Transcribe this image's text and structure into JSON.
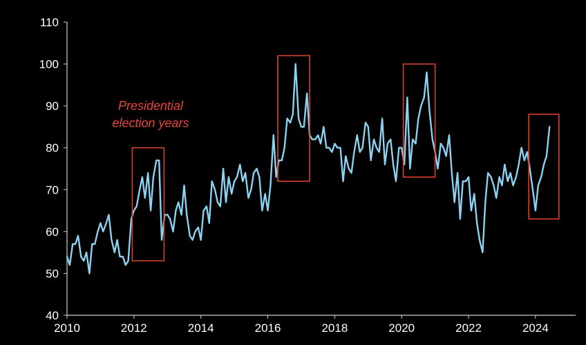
{
  "chart_data": {
    "type": "line",
    "title": "",
    "xlabel": "",
    "ylabel": "",
    "xlim": [
      2010,
      2025.2
    ],
    "ylim": [
      40,
      110
    ],
    "x_ticks": [
      "2010",
      "2012",
      "2014",
      "2016",
      "2018",
      "2020",
      "2022",
      "2024"
    ],
    "y_ticks": [
      "40",
      "50",
      "60",
      "70",
      "80",
      "90",
      "100",
      "110"
    ],
    "grid": false,
    "legend": "none",
    "series": [
      {
        "color": "#8ed2f2",
        "points": [
          [
            2010.0,
            54
          ],
          [
            2010.08,
            52
          ],
          [
            2010.17,
            57
          ],
          [
            2010.25,
            57
          ],
          [
            2010.33,
            59
          ],
          [
            2010.42,
            54
          ],
          [
            2010.5,
            53
          ],
          [
            2010.58,
            55
          ],
          [
            2010.67,
            50
          ],
          [
            2010.75,
            57
          ],
          [
            2010.83,
            57
          ],
          [
            2010.92,
            60
          ],
          [
            2011.0,
            62
          ],
          [
            2011.08,
            60
          ],
          [
            2011.17,
            62
          ],
          [
            2011.25,
            64
          ],
          [
            2011.33,
            58
          ],
          [
            2011.42,
            55
          ],
          [
            2011.5,
            58
          ],
          [
            2011.58,
            54
          ],
          [
            2011.67,
            54
          ],
          [
            2011.75,
            52
          ],
          [
            2011.83,
            53
          ],
          [
            2011.92,
            63
          ],
          [
            2012.0,
            65
          ],
          [
            2012.08,
            66
          ],
          [
            2012.17,
            70
          ],
          [
            2012.25,
            73
          ],
          [
            2012.33,
            68
          ],
          [
            2012.42,
            74
          ],
          [
            2012.5,
            65
          ],
          [
            2012.58,
            73
          ],
          [
            2012.67,
            77
          ],
          [
            2012.75,
            77
          ],
          [
            2012.83,
            58
          ],
          [
            2012.92,
            64
          ],
          [
            2013.0,
            64
          ],
          [
            2013.08,
            63
          ],
          [
            2013.17,
            60
          ],
          [
            2013.25,
            65
          ],
          [
            2013.33,
            67
          ],
          [
            2013.42,
            64
          ],
          [
            2013.5,
            71
          ],
          [
            2013.58,
            64
          ],
          [
            2013.67,
            59
          ],
          [
            2013.75,
            58
          ],
          [
            2013.83,
            60
          ],
          [
            2013.92,
            61
          ],
          [
            2014.0,
            58
          ],
          [
            2014.08,
            65
          ],
          [
            2014.17,
            66
          ],
          [
            2014.25,
            62
          ],
          [
            2014.33,
            72
          ],
          [
            2014.42,
            70
          ],
          [
            2014.5,
            67
          ],
          [
            2014.58,
            66
          ],
          [
            2014.67,
            75
          ],
          [
            2014.75,
            67
          ],
          [
            2014.83,
            73
          ],
          [
            2014.92,
            69
          ],
          [
            2015.0,
            72
          ],
          [
            2015.08,
            73
          ],
          [
            2015.17,
            76
          ],
          [
            2015.25,
            72
          ],
          [
            2015.33,
            74
          ],
          [
            2015.42,
            68
          ],
          [
            2015.5,
            70
          ],
          [
            2015.58,
            74
          ],
          [
            2015.67,
            75
          ],
          [
            2015.75,
            73
          ],
          [
            2015.83,
            65
          ],
          [
            2015.92,
            69
          ],
          [
            2016.0,
            65
          ],
          [
            2016.08,
            71
          ],
          [
            2016.17,
            83
          ],
          [
            2016.25,
            73
          ],
          [
            2016.33,
            77
          ],
          [
            2016.42,
            77
          ],
          [
            2016.5,
            80
          ],
          [
            2016.58,
            87
          ],
          [
            2016.67,
            86
          ],
          [
            2016.75,
            88
          ],
          [
            2016.83,
            100
          ],
          [
            2016.92,
            87
          ],
          [
            2017.0,
            85
          ],
          [
            2017.08,
            85
          ],
          [
            2017.17,
            93
          ],
          [
            2017.25,
            83
          ],
          [
            2017.33,
            82
          ],
          [
            2017.42,
            82
          ],
          [
            2017.5,
            83
          ],
          [
            2017.58,
            81
          ],
          [
            2017.67,
            85
          ],
          [
            2017.75,
            80
          ],
          [
            2017.83,
            80
          ],
          [
            2017.92,
            79
          ],
          [
            2018.0,
            81
          ],
          [
            2018.08,
            80
          ],
          [
            2018.17,
            80
          ],
          [
            2018.25,
            72
          ],
          [
            2018.33,
            78
          ],
          [
            2018.42,
            75
          ],
          [
            2018.5,
            74
          ],
          [
            2018.58,
            79
          ],
          [
            2018.67,
            83
          ],
          [
            2018.75,
            79
          ],
          [
            2018.83,
            80
          ],
          [
            2018.92,
            86
          ],
          [
            2019.0,
            85
          ],
          [
            2019.08,
            77
          ],
          [
            2019.17,
            82
          ],
          [
            2019.25,
            80
          ],
          [
            2019.33,
            79
          ],
          [
            2019.42,
            87
          ],
          [
            2019.5,
            76
          ],
          [
            2019.58,
            81
          ],
          [
            2019.67,
            82
          ],
          [
            2019.75,
            76
          ],
          [
            2019.83,
            72
          ],
          [
            2019.92,
            80
          ],
          [
            2020.0,
            80
          ],
          [
            2020.08,
            76
          ],
          [
            2020.17,
            92
          ],
          [
            2020.25,
            75
          ],
          [
            2020.33,
            82
          ],
          [
            2020.42,
            81
          ],
          [
            2020.5,
            87
          ],
          [
            2020.58,
            90
          ],
          [
            2020.67,
            92
          ],
          [
            2020.75,
            98
          ],
          [
            2020.83,
            89
          ],
          [
            2020.92,
            82
          ],
          [
            2021.0,
            79
          ],
          [
            2021.08,
            75
          ],
          [
            2021.17,
            81
          ],
          [
            2021.25,
            80
          ],
          [
            2021.33,
            78
          ],
          [
            2021.42,
            83
          ],
          [
            2021.5,
            74
          ],
          [
            2021.58,
            67
          ],
          [
            2021.67,
            74
          ],
          [
            2021.75,
            63
          ],
          [
            2021.83,
            72
          ],
          [
            2021.92,
            72
          ],
          [
            2022.0,
            73
          ],
          [
            2022.08,
            65
          ],
          [
            2022.17,
            69
          ],
          [
            2022.25,
            62
          ],
          [
            2022.33,
            58
          ],
          [
            2022.42,
            55
          ],
          [
            2022.5,
            67
          ],
          [
            2022.58,
            74
          ],
          [
            2022.67,
            73
          ],
          [
            2022.75,
            71
          ],
          [
            2022.83,
            68
          ],
          [
            2022.92,
            73
          ],
          [
            2023.0,
            71
          ],
          [
            2023.08,
            76
          ],
          [
            2023.17,
            72
          ],
          [
            2023.25,
            74
          ],
          [
            2023.33,
            71
          ],
          [
            2023.42,
            73
          ],
          [
            2023.5,
            76
          ],
          [
            2023.58,
            80
          ],
          [
            2023.67,
            77
          ],
          [
            2023.75,
            79
          ],
          [
            2023.83,
            75
          ],
          [
            2023.92,
            70
          ],
          [
            2024.0,
            65
          ],
          [
            2024.08,
            71
          ],
          [
            2024.17,
            73
          ],
          [
            2024.25,
            76
          ],
          [
            2024.33,
            78
          ],
          [
            2024.42,
            85
          ]
        ]
      }
    ],
    "annotations": {
      "label_line1": "Presidential",
      "label_line2": "election years",
      "label_color": "#e8443a",
      "highlight_color": "#d9412f",
      "highlight_boxes": [
        {
          "x": [
            2011.95,
            2012.9
          ],
          "y": [
            53,
            80
          ]
        },
        {
          "x": [
            2016.3,
            2017.25
          ],
          "y": [
            72,
            102
          ]
        },
        {
          "x": [
            2020.05,
            2021.0
          ],
          "y": [
            73,
            100
          ]
        },
        {
          "x": [
            2023.8,
            2024.7
          ],
          "y": [
            63,
            88
          ]
        }
      ]
    }
  }
}
